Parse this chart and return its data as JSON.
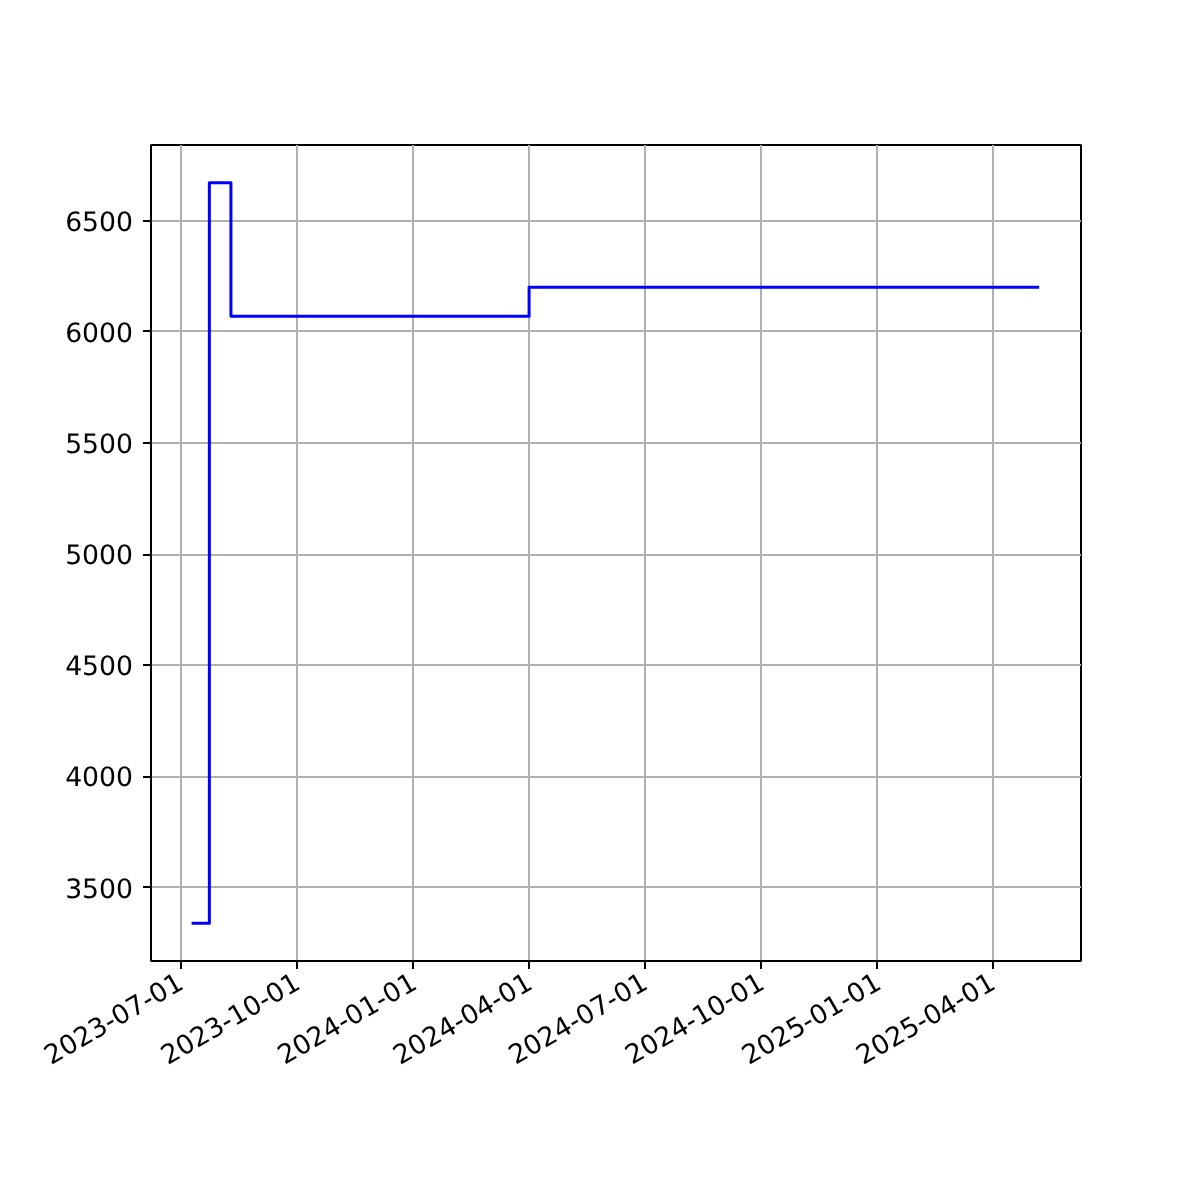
{
  "chart_data": {
    "type": "step",
    "x": [
      "2023-07-10",
      "2023-07-24",
      "2023-08-10",
      "2024-04-01",
      "2025-05-08"
    ],
    "series": [
      {
        "color": "#0000ff",
        "values": [
          3340,
          6670,
          6070,
          6200,
          6200
        ]
      }
    ],
    "xlim": [
      "2023-06-08",
      "2025-06-10"
    ],
    "ylim": [
      3170,
      6840
    ],
    "xticks": [
      "2023-07-01",
      "2023-10-01",
      "2024-01-01",
      "2024-04-01",
      "2024-07-01",
      "2024-10-01",
      "2025-01-01",
      "2025-04-01"
    ],
    "yticks": [
      3500,
      4000,
      4500,
      5000,
      5500,
      6000,
      6500
    ],
    "grid": true
  }
}
